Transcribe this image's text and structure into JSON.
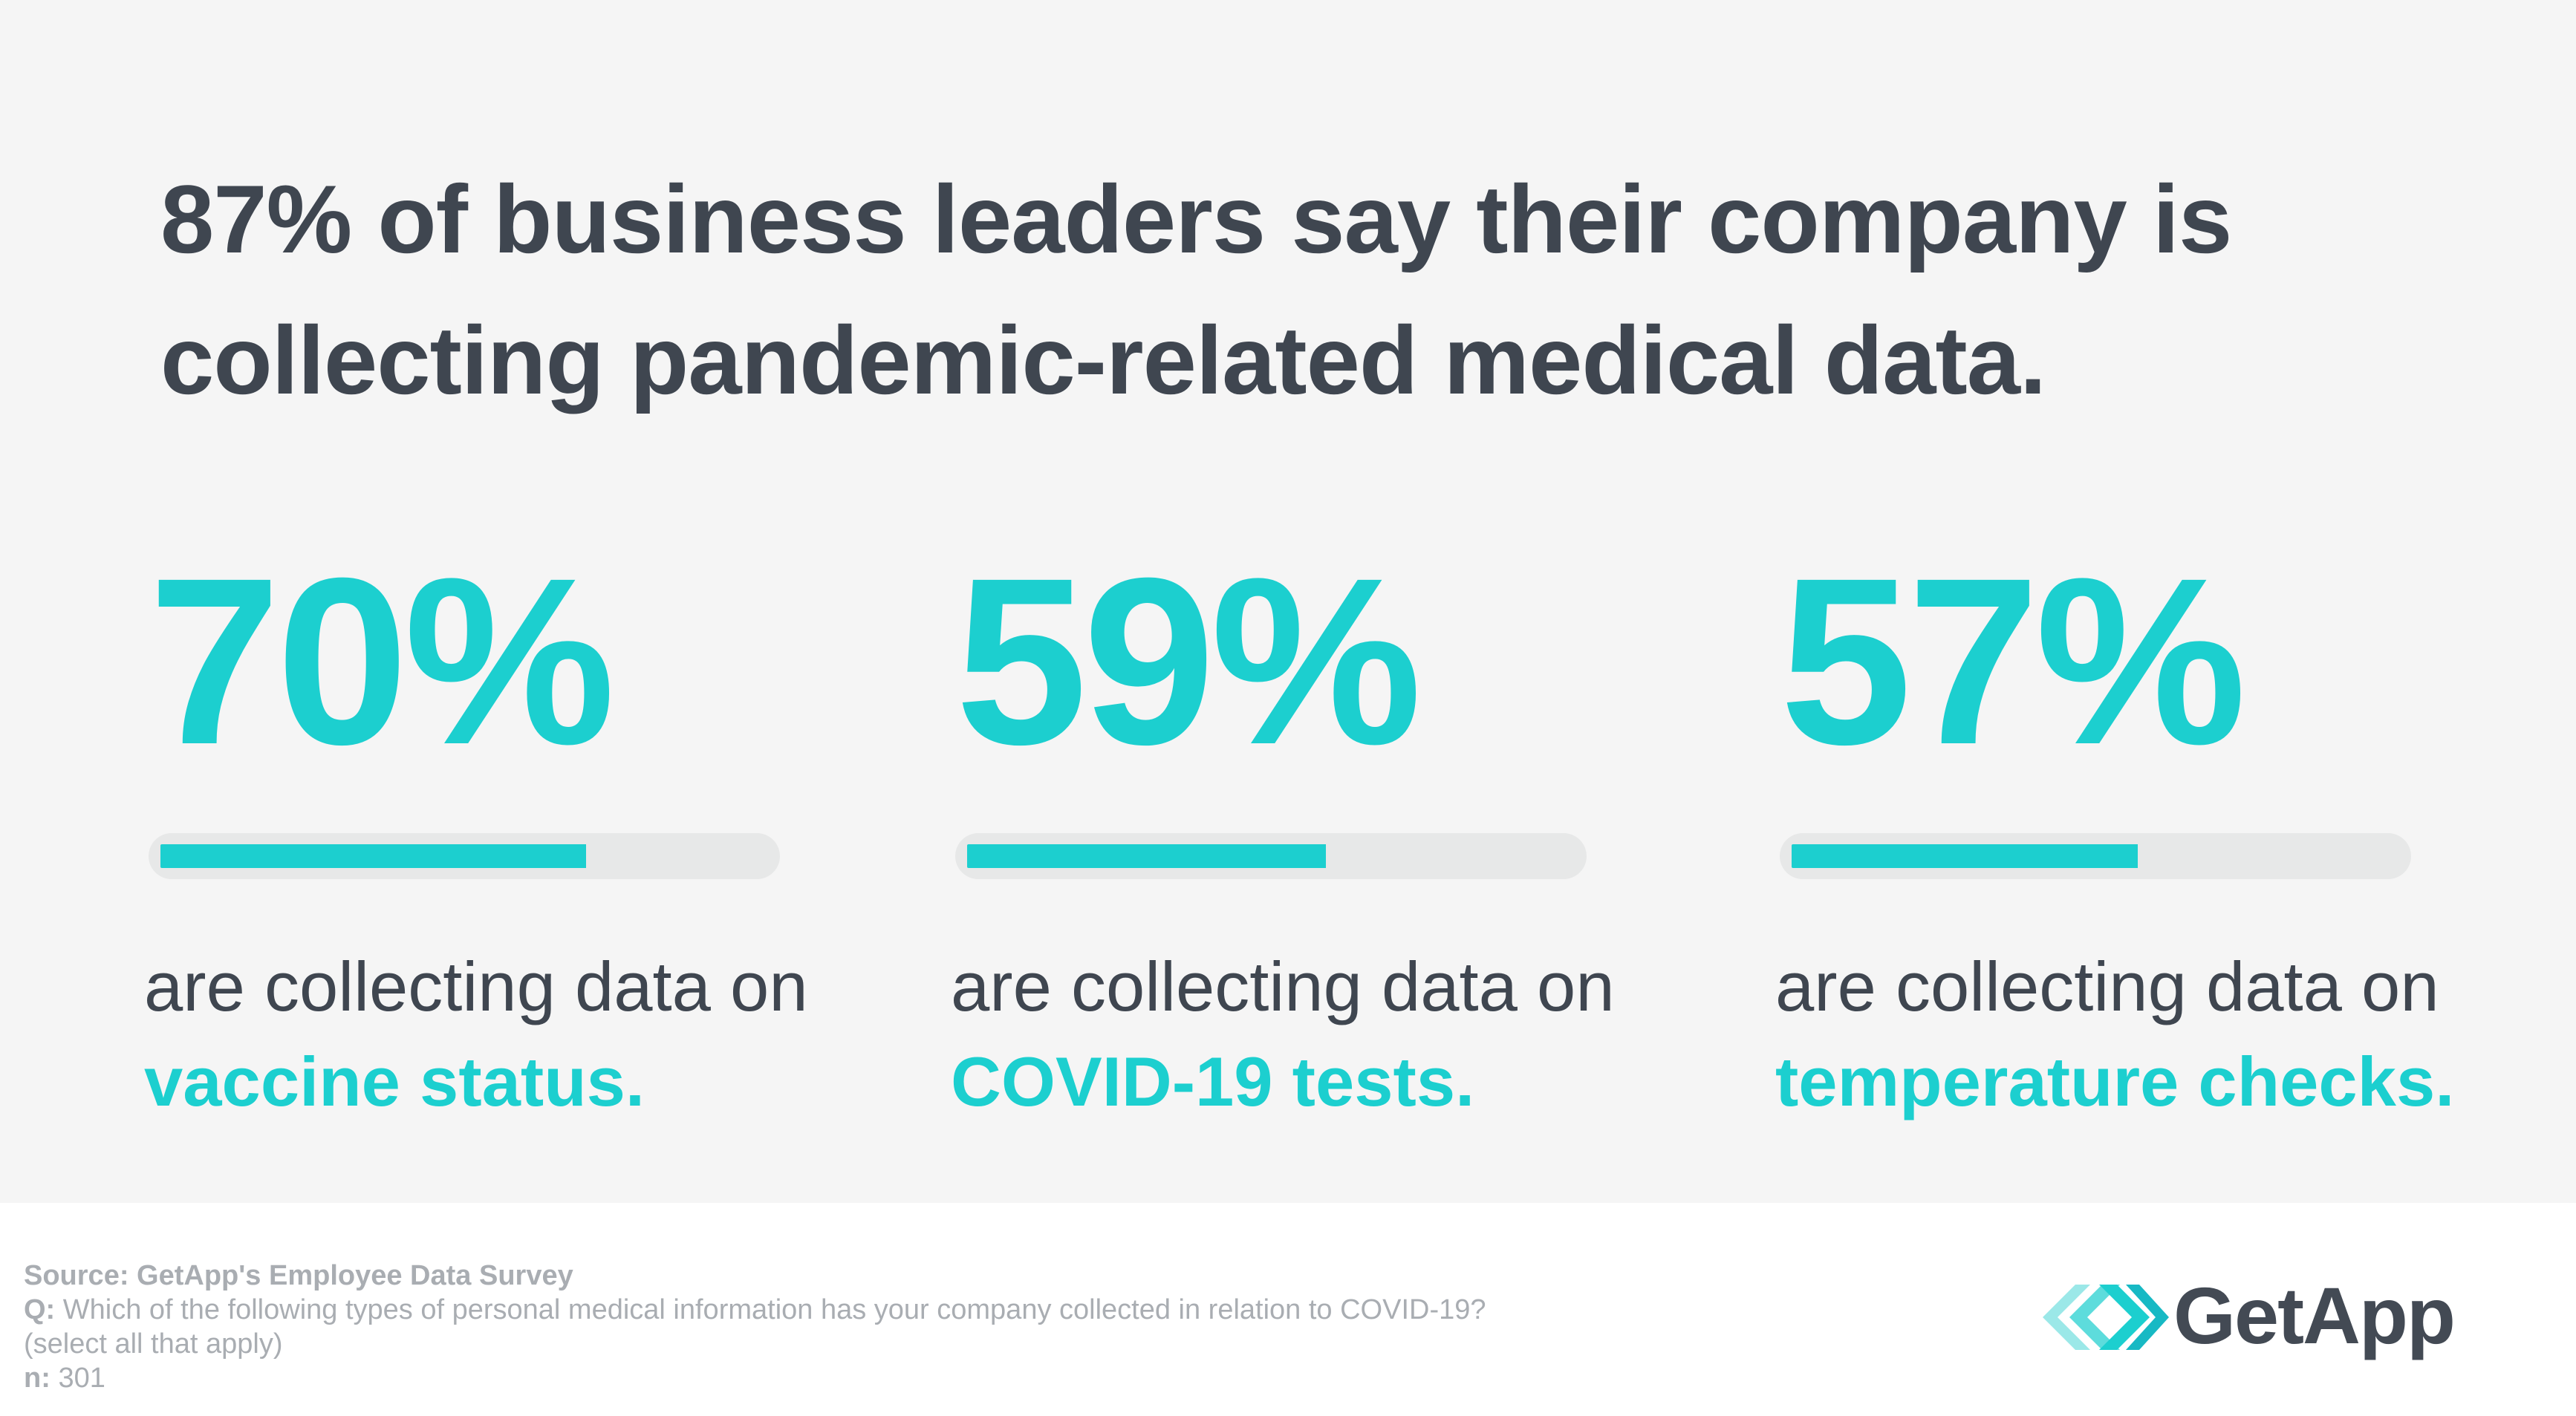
{
  "headline": {
    "line1": "87% of business leaders say their company is",
    "line2": "collecting pandemic-related medical data."
  },
  "chart_data": {
    "type": "bar",
    "categories": [
      "vaccine status.",
      "COVID-19 tests.",
      "temperature checks."
    ],
    "values": [
      70,
      59,
      57
    ],
    "value_labels": [
      "70%",
      "59%",
      "57%"
    ],
    "caption_prefix": "are collecting data on",
    "ylim": [
      0,
      100
    ],
    "title": "87% of business leaders say their company is collecting pandemic-related medical data."
  },
  "colors": {
    "accent": "#1ccfcf",
    "text": "#3f4650",
    "track": "#e7e8e8",
    "panel": "#f5f5f5",
    "muted": "#a9adb2"
  },
  "footer": {
    "source": "Source: GetApp's Employee Data Survey",
    "question_label": "Q:",
    "question": "Which of the following types of personal medical information has your company collected in relation to COVID-19?",
    "question_note": "(select all that apply)",
    "n_label": "n:",
    "n_value": "301"
  },
  "brand": {
    "name": "GetApp",
    "logo_icon": "chevrons-right-icon"
  }
}
